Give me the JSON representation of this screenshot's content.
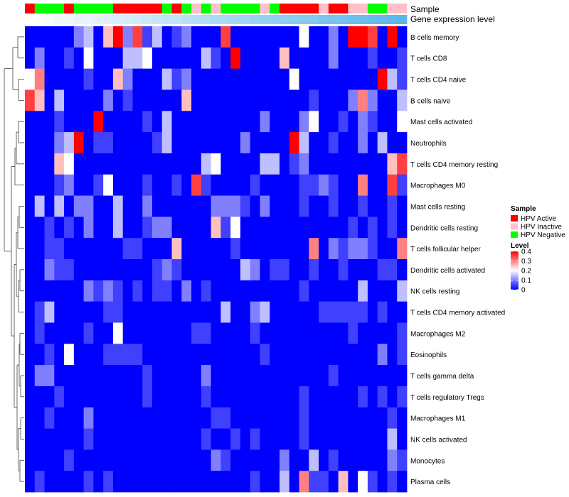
{
  "chart_data": {
    "type": "heatmap",
    "annotation_tracks": [
      {
        "name": "Sample",
        "kind": "categorical"
      },
      {
        "name": "Gene expression level",
        "kind": "continuous"
      }
    ],
    "sample_groups": [
      "Active",
      "Negative",
      "Negative",
      "Negative",
      "Active",
      "Negative",
      "Negative",
      "Negative",
      "Negative",
      "Active",
      "Active",
      "Active",
      "Active",
      "Active",
      "Negative",
      "Active",
      "Negative",
      "Inactive",
      "Negative",
      "Inactive",
      "Negative",
      "Negative",
      "Negative",
      "Negative",
      "Inactive",
      "Negative",
      "Active",
      "Active",
      "Active",
      "Active",
      "Inactive",
      "Active",
      "Active",
      "Inactive",
      "Inactive",
      "Negative",
      "Negative",
      "Inactive",
      "Inactive"
    ],
    "rows": [
      "B cells memory",
      "T cells CD8",
      "T cells CD4 naive",
      "B cells naive",
      "Mast cells activated",
      "Neutrophils",
      "T cells CD4 memory resting",
      "Macrophages M0",
      "Mast cells resting",
      "Dendritic cells resting",
      "T cells follicular helper",
      "Dendritic cells activated",
      "NK cells resting",
      "T cells CD4 memory activated",
      "Macrophages M2",
      "Eosinophils",
      "T cells gamma delta",
      "T cells regulatory  Tregs",
      "Macrophages M1",
      "NK cells activated",
      "Monocytes",
      "Plasma cells"
    ],
    "values": [
      [
        0.0,
        0.0,
        0.0,
        0.0,
        0.0,
        0.1,
        0.15,
        0.0,
        0.25,
        0.4,
        0.1,
        0.35,
        0.05,
        0.15,
        0.0,
        0.05,
        0.1,
        0.0,
        0.0,
        0.0,
        0.35,
        0.0,
        0.0,
        0.0,
        0.0,
        0.0,
        0.0,
        0.0,
        0.2,
        0.0,
        0.0,
        0.1,
        0.0,
        0.4,
        0.4,
        0.35,
        0.0,
        0.4,
        0.0
      ],
      [
        0.0,
        0.1,
        0.0,
        0.0,
        0.05,
        0.0,
        0.2,
        0.0,
        0.0,
        0.0,
        0.15,
        0.15,
        0.2,
        0.0,
        0.0,
        0.0,
        0.0,
        0.0,
        0.15,
        0.05,
        0.0,
        0.4,
        0.0,
        0.0,
        0.0,
        0.0,
        0.25,
        0.0,
        0.0,
        0.0,
        0.0,
        0.1,
        0.0,
        0.0,
        0.0,
        0.05,
        0.0,
        0.0,
        0.05
      ],
      [
        0.2,
        0.3,
        0.0,
        0.0,
        0.0,
        0.0,
        0.05,
        0.0,
        0.0,
        0.25,
        0.1,
        0.0,
        0.0,
        0.0,
        0.15,
        0.05,
        0.1,
        0.0,
        0.0,
        0.0,
        0.0,
        0.0,
        0.0,
        0.0,
        0.0,
        0.0,
        0.0,
        0.2,
        0.0,
        0.0,
        0.0,
        0.0,
        0.0,
        0.0,
        0.0,
        0.0,
        0.4,
        0.15,
        0.05
      ],
      [
        0.35,
        0.25,
        0.0,
        0.15,
        0.0,
        0.0,
        0.0,
        0.0,
        0.1,
        0.0,
        0.05,
        0.0,
        0.0,
        0.0,
        0.0,
        0.0,
        0.25,
        0.0,
        0.0,
        0.0,
        0.0,
        0.0,
        0.0,
        0.0,
        0.0,
        0.0,
        0.0,
        0.0,
        0.0,
        0.05,
        0.0,
        0.0,
        0.0,
        0.1,
        0.3,
        0.1,
        0.0,
        0.0,
        0.15
      ],
      [
        0.0,
        0.0,
        0.0,
        0.05,
        0.0,
        0.0,
        0.0,
        0.4,
        0.0,
        0.0,
        0.0,
        0.0,
        0.05,
        0.0,
        0.15,
        0.0,
        0.0,
        0.0,
        0.0,
        0.0,
        0.0,
        0.0,
        0.0,
        0.0,
        0.1,
        0.0,
        0.0,
        0.0,
        0.1,
        0.2,
        0.0,
        0.0,
        0.05,
        0.0,
        0.1,
        0.05,
        0.0,
        0.0,
        0.2
      ],
      [
        0.0,
        0.0,
        0.0,
        0.1,
        0.15,
        0.4,
        0.0,
        0.05,
        0.05,
        0.0,
        0.0,
        0.0,
        0.0,
        0.05,
        0.15,
        0.0,
        0.0,
        0.0,
        0.0,
        0.0,
        0.0,
        0.0,
        0.1,
        0.0,
        0.0,
        0.0,
        0.0,
        0.4,
        0.15,
        0.0,
        0.0,
        0.05,
        0.0,
        0.0,
        0.1,
        0.0,
        0.15,
        0.0,
        0.0
      ],
      [
        0.0,
        0.0,
        0.0,
        0.25,
        0.2,
        0.0,
        0.0,
        0.0,
        0.0,
        0.0,
        0.0,
        0.0,
        0.0,
        0.0,
        0.0,
        0.0,
        0.0,
        0.0,
        0.15,
        0.2,
        0.0,
        0.0,
        0.0,
        0.0,
        0.15,
        0.15,
        0.0,
        0.05,
        0.1,
        0.0,
        0.0,
        0.0,
        0.0,
        0.0,
        0.0,
        0.0,
        0.0,
        0.25,
        0.35
      ],
      [
        0.0,
        0.0,
        0.0,
        0.05,
        0.1,
        0.0,
        0.0,
        0.05,
        0.2,
        0.0,
        0.0,
        0.0,
        0.05,
        0.0,
        0.0,
        0.05,
        0.0,
        0.35,
        0.05,
        0.0,
        0.0,
        0.0,
        0.0,
        0.05,
        0.0,
        0.0,
        0.0,
        0.0,
        0.05,
        0.05,
        0.1,
        0.05,
        0.0,
        0.0,
        0.3,
        0.0,
        0.0,
        0.35,
        0.05
      ],
      [
        0.0,
        0.15,
        0.0,
        0.15,
        0.0,
        0.1,
        0.1,
        0.0,
        0.0,
        0.15,
        0.0,
        0.0,
        0.1,
        0.0,
        0.0,
        0.0,
        0.0,
        0.0,
        0.0,
        0.1,
        0.1,
        0.1,
        0.05,
        0.0,
        0.1,
        0.0,
        0.0,
        0.0,
        0.05,
        0.0,
        0.0,
        0.05,
        0.0,
        0.0,
        0.05,
        0.0,
        0.0,
        0.05,
        0.0
      ],
      [
        0.0,
        0.0,
        0.05,
        0.0,
        0.05,
        0.0,
        0.1,
        0.0,
        0.0,
        0.15,
        0.0,
        0.0,
        0.05,
        0.1,
        0.1,
        0.0,
        0.0,
        0.0,
        0.0,
        0.25,
        0.05,
        0.2,
        0.0,
        0.0,
        0.0,
        0.0,
        0.0,
        0.0,
        0.0,
        0.0,
        0.0,
        0.0,
        0.0,
        0.05,
        0.0,
        0.05,
        0.0,
        0.05,
        0.0
      ],
      [
        0.0,
        0.0,
        0.05,
        0.05,
        0.0,
        0.0,
        0.0,
        0.0,
        0.0,
        0.0,
        0.05,
        0.05,
        0.0,
        0.0,
        0.0,
        0.25,
        0.0,
        0.0,
        0.0,
        0.0,
        0.0,
        0.05,
        0.0,
        0.0,
        0.0,
        0.0,
        0.0,
        0.0,
        0.0,
        0.3,
        0.0,
        0.1,
        0.05,
        0.1,
        0.1,
        0.05,
        0.0,
        0.0,
        0.3
      ],
      [
        0.0,
        0.0,
        0.1,
        0.05,
        0.05,
        0.0,
        0.0,
        0.0,
        0.0,
        0.0,
        0.0,
        0.0,
        0.0,
        0.05,
        0.1,
        0.05,
        0.0,
        0.0,
        0.0,
        0.0,
        0.0,
        0.0,
        0.15,
        0.1,
        0.0,
        0.05,
        0.05,
        0.0,
        0.0,
        0.05,
        0.0,
        0.0,
        0.05,
        0.0,
        0.0,
        0.0,
        0.05,
        0.05,
        0.0
      ],
      [
        0.0,
        0.0,
        0.0,
        0.0,
        0.0,
        0.0,
        0.1,
        0.05,
        0.1,
        0.05,
        0.0,
        0.05,
        0.0,
        0.05,
        0.05,
        0.0,
        0.1,
        0.0,
        0.05,
        0.0,
        0.0,
        0.0,
        0.0,
        0.0,
        0.0,
        0.0,
        0.0,
        0.0,
        0.05,
        0.0,
        0.0,
        0.0,
        0.0,
        0.0,
        0.15,
        0.0,
        0.0,
        0.0,
        0.15
      ],
      [
        0.0,
        0.05,
        0.15,
        0.0,
        0.0,
        0.0,
        0.0,
        0.0,
        0.05,
        0.05,
        0.0,
        0.0,
        0.0,
        0.0,
        0.0,
        0.0,
        0.0,
        0.0,
        0.0,
        0.0,
        0.15,
        0.0,
        0.0,
        0.1,
        0.15,
        0.0,
        0.0,
        0.0,
        0.0,
        0.0,
        0.05,
        0.05,
        0.05,
        0.05,
        0.05,
        0.0,
        0.05,
        0.0,
        0.0
      ],
      [
        0.0,
        0.05,
        0.0,
        0.0,
        0.0,
        0.0,
        0.05,
        0.0,
        0.0,
        0.2,
        0.0,
        0.0,
        0.0,
        0.0,
        0.0,
        0.0,
        0.0,
        0.05,
        0.05,
        0.0,
        0.0,
        0.0,
        0.0,
        0.05,
        0.0,
        0.0,
        0.0,
        0.0,
        0.0,
        0.0,
        0.0,
        0.0,
        0.0,
        0.05,
        0.0,
        0.0,
        0.0,
        0.0,
        0.05
      ],
      [
        0.0,
        0.0,
        0.05,
        0.0,
        0.2,
        0.0,
        0.0,
        0.0,
        0.05,
        0.05,
        0.05,
        0.05,
        0.0,
        0.0,
        0.0,
        0.0,
        0.0,
        0.0,
        0.0,
        0.0,
        0.0,
        0.0,
        0.0,
        0.0,
        0.05,
        0.0,
        0.0,
        0.0,
        0.0,
        0.0,
        0.0,
        0.0,
        0.0,
        0.0,
        0.0,
        0.0,
        0.1,
        0.0,
        0.05
      ],
      [
        0.0,
        0.1,
        0.1,
        0.0,
        0.0,
        0.0,
        0.0,
        0.0,
        0.0,
        0.0,
        0.0,
        0.0,
        0.05,
        0.0,
        0.0,
        0.0,
        0.0,
        0.0,
        0.1,
        0.0,
        0.0,
        0.0,
        0.0,
        0.0,
        0.0,
        0.0,
        0.0,
        0.0,
        0.0,
        0.0,
        0.0,
        0.05,
        0.0,
        0.0,
        0.0,
        0.0,
        0.0,
        0.0,
        0.0
      ],
      [
        0.0,
        0.0,
        0.0,
        0.05,
        0.0,
        0.0,
        0.0,
        0.0,
        0.0,
        0.0,
        0.0,
        0.0,
        0.05,
        0.0,
        0.0,
        0.0,
        0.0,
        0.0,
        0.05,
        0.0,
        0.0,
        0.0,
        0.0,
        0.0,
        0.0,
        0.0,
        0.0,
        0.0,
        0.05,
        0.0,
        0.0,
        0.0,
        0.0,
        0.0,
        0.05,
        0.0,
        0.05,
        0.0,
        0.05
      ],
      [
        0.0,
        0.0,
        0.05,
        0.0,
        0.0,
        0.0,
        0.1,
        0.0,
        0.0,
        0.0,
        0.0,
        0.0,
        0.0,
        0.0,
        0.0,
        0.0,
        0.0,
        0.0,
        0.0,
        0.05,
        0.05,
        0.0,
        0.0,
        0.0,
        0.0,
        0.0,
        0.0,
        0.0,
        0.05,
        0.0,
        0.0,
        0.0,
        0.0,
        0.0,
        0.0,
        0.0,
        0.0,
        0.05,
        0.0
      ],
      [
        0.0,
        0.0,
        0.0,
        0.0,
        0.0,
        0.0,
        0.05,
        0.0,
        0.0,
        0.0,
        0.0,
        0.0,
        0.0,
        0.0,
        0.0,
        0.0,
        0.0,
        0.0,
        0.05,
        0.0,
        0.0,
        0.05,
        0.0,
        0.05,
        0.0,
        0.0,
        0.0,
        0.0,
        0.05,
        0.0,
        0.0,
        0.0,
        0.0,
        0.0,
        0.0,
        0.0,
        0.0,
        0.15,
        0.0
      ],
      [
        0.0,
        0.0,
        0.0,
        0.0,
        0.05,
        0.0,
        0.0,
        0.0,
        0.0,
        0.0,
        0.0,
        0.0,
        0.0,
        0.0,
        0.0,
        0.0,
        0.0,
        0.0,
        0.0,
        0.1,
        0.05,
        0.0,
        0.0,
        0.0,
        0.0,
        0.0,
        0.1,
        0.0,
        0.0,
        0.15,
        0.0,
        0.05,
        0.0,
        0.0,
        0.0,
        0.0,
        0.0,
        0.1,
        0.05
      ],
      [
        0.0,
        0.05,
        0.0,
        0.0,
        0.0,
        0.0,
        0.05,
        0.0,
        0.05,
        0.0,
        0.0,
        0.0,
        0.0,
        0.0,
        0.0,
        0.0,
        0.0,
        0.0,
        0.0,
        0.0,
        0.0,
        0.0,
        0.0,
        0.05,
        0.0,
        0.0,
        0.15,
        0.0,
        0.3,
        0.05,
        0.05,
        0.0,
        0.25,
        0.0,
        0.2,
        0.05,
        0.0,
        0.05,
        0.0
      ]
    ],
    "gene_expression_level": [
      0.0,
      0.03,
      0.05,
      0.08,
      0.1,
      0.13,
      0.15,
      0.18,
      0.21,
      0.23,
      0.26,
      0.28,
      0.31,
      0.33,
      0.36,
      0.38,
      0.41,
      0.44,
      0.46,
      0.49,
      0.51,
      0.54,
      0.56,
      0.59,
      0.62,
      0.64,
      0.67,
      0.69,
      0.72,
      0.74,
      0.77,
      0.79,
      0.82,
      0.85,
      0.87,
      0.9,
      0.92,
      0.95,
      0.97
    ],
    "legend": {
      "sample_title": "Sample",
      "sample_entries": [
        {
          "label": "HPV Active",
          "key": "Active",
          "color": "#ff0000"
        },
        {
          "label": "HPV Inactive",
          "key": "Inactive",
          "color": "#ffc0cb"
        },
        {
          "label": "HPV Negative",
          "key": "Negative",
          "color": "#00ff00"
        }
      ],
      "level_title": "Level",
      "level_ticks": [
        0.4,
        0.3,
        0.2,
        0.1,
        0
      ],
      "level_tick_labels": [
        "0.4",
        "0.3",
        "0.2",
        "0.1",
        "0"
      ]
    },
    "color_scale": {
      "low": "#0000ff",
      "mid": "#ffffff",
      "high": "#ff0000",
      "min": 0,
      "mid_value": 0.2,
      "max": 0.4
    },
    "gene_expression_colors": {
      "low": "#ffffff",
      "high": "#56b4e9"
    },
    "dendrogram": "rows"
  }
}
